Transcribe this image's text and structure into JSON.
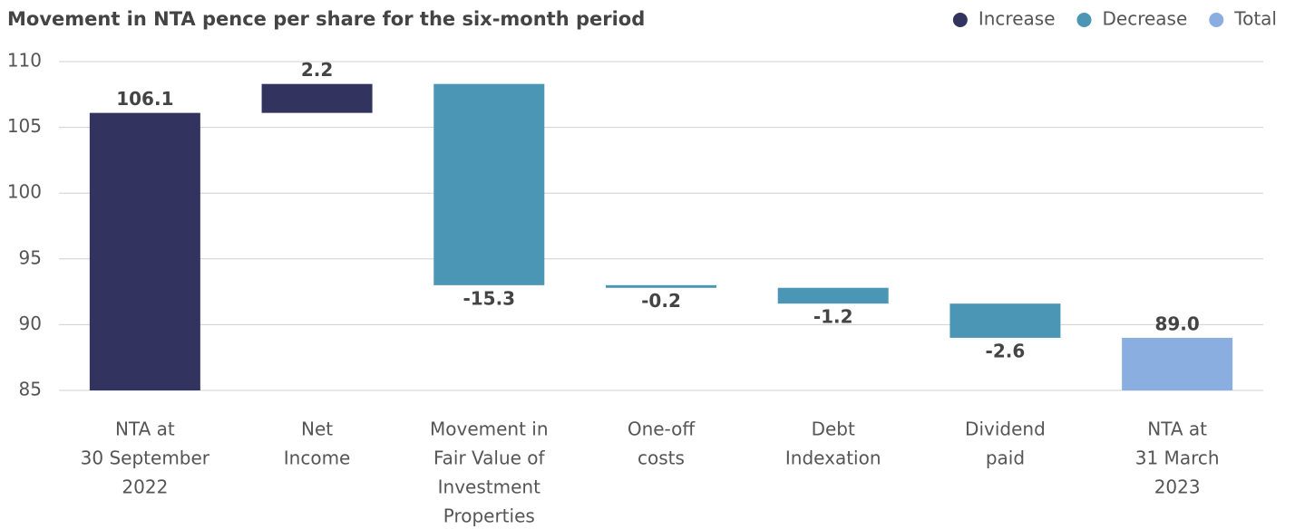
{
  "chart_data": {
    "type": "waterfall",
    "title": "Movement in NTA pence per share for the six-month period",
    "categories": [
      [
        "NTA at",
        "30 September",
        "2022"
      ],
      [
        "Net",
        "Income"
      ],
      [
        "Movement in",
        "Fair Value of",
        "Investment",
        "Properties"
      ],
      [
        "One-off",
        "costs"
      ],
      [
        "Debt",
        "Indexation"
      ],
      [
        "Dividend",
        "paid"
      ],
      [
        "NTA at",
        "31 March",
        "2023"
      ]
    ],
    "values": [
      106.1,
      2.2,
      -15.3,
      -0.2,
      -1.2,
      -2.6,
      89.0
    ],
    "value_labels": [
      "106.1",
      "2.2",
      "-15.3",
      "-0.2",
      "-1.2",
      "-2.6",
      "89.0"
    ],
    "measures": [
      "absolute",
      "relative",
      "relative",
      "relative",
      "relative",
      "relative",
      "total"
    ],
    "colors": [
      "#33335f",
      "#33335f",
      "#4a96b4",
      "#4a96b4",
      "#4a96b4",
      "#4a96b4",
      "#8aaee0"
    ],
    "legend": [
      {
        "name": "Increase",
        "color": "#33335f"
      },
      {
        "name": "Decrease",
        "color": "#4a96b4"
      },
      {
        "name": "Total",
        "color": "#8aaee0"
      }
    ],
    "ylim": [
      85,
      110
    ],
    "yticks": [
      85,
      90,
      95,
      100,
      105,
      110
    ],
    "grid": true
  }
}
